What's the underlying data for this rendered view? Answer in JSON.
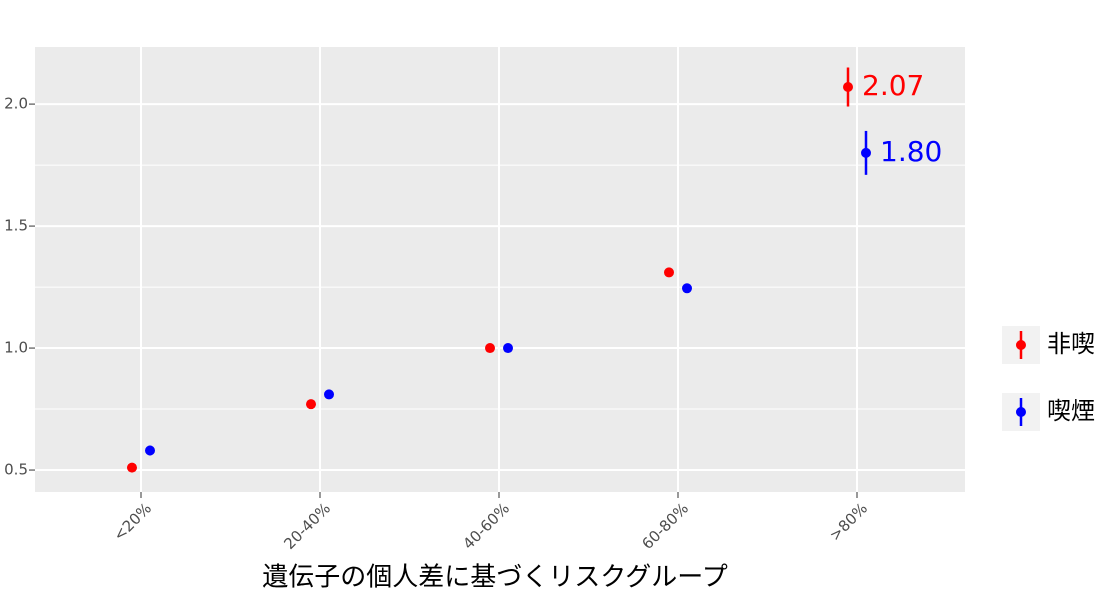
{
  "chart_data": {
    "type": "errorbar-dot",
    "x_label": "遺伝子の個人差に基づくリスクグループ",
    "categories": [
      "<20%",
      "20-40%",
      "40-60%",
      "60-80%",
      ">80%"
    ],
    "series": [
      {
        "name": "非喫",
        "color": "#ff0000",
        "values": [
          0.51,
          0.77,
          1.0,
          1.31,
          2.07
        ],
        "error": [
          0,
          0,
          0,
          0,
          0.08
        ],
        "value_labels": [
          null,
          null,
          null,
          null,
          "2.07"
        ]
      },
      {
        "name": "喫煙",
        "color": "#0000ff",
        "values": [
          0.58,
          0.81,
          1.0,
          1.245,
          1.8
        ],
        "error": [
          0.02,
          0,
          0,
          0,
          0.09
        ],
        "value_labels": [
          null,
          null,
          null,
          null,
          "1.80"
        ]
      }
    ],
    "ylim": [
      0.41,
      2.234
    ],
    "yticks": [
      0.5,
      {
        "value": 1,
        "label": "1.0"
      },
      1.5,
      {
        "value": 2,
        "label": "2.0"
      }
    ],
    "minor_yticks": [
      0.75,
      1.25,
      1.75
    ],
    "grid": true,
    "legend": "right"
  }
}
